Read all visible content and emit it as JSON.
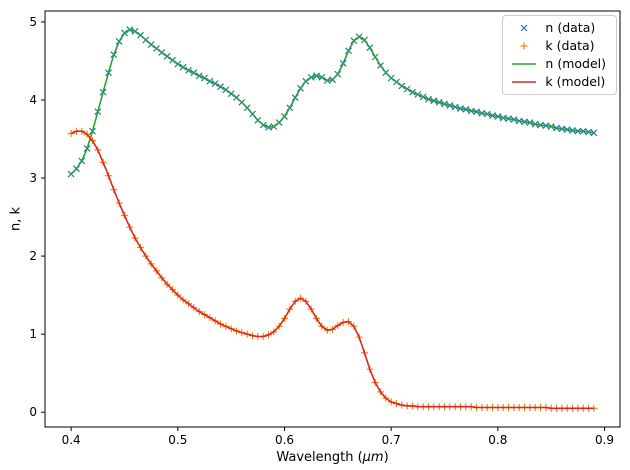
{
  "chart_data": {
    "type": "line",
    "title": "",
    "xlabel_prefix": "Wavelength (",
    "xlabel_math": "μm",
    "xlabel_suffix": ")",
    "ylabel": "n, k",
    "xlim": [
      0.3755,
      0.9145
    ],
    "ylim": [
      -0.19,
      5.14
    ],
    "grid": false,
    "legend_position": "upper right",
    "xtick_values": [
      0.4,
      0.5,
      0.6,
      0.7,
      0.8,
      0.9
    ],
    "xtick_labels": [
      "0.4",
      "0.5",
      "0.6",
      "0.7",
      "0.8",
      "0.9"
    ],
    "ytick_values": [
      0,
      1,
      2,
      3,
      4,
      5
    ],
    "ytick_labels": [
      "0",
      "1",
      "2",
      "3",
      "4",
      "5"
    ],
    "x": [
      0.4,
      0.405,
      0.41,
      0.415,
      0.42,
      0.425,
      0.43,
      0.435,
      0.44,
      0.445,
      0.45,
      0.455,
      0.46,
      0.465,
      0.47,
      0.475,
      0.48,
      0.485,
      0.49,
      0.495,
      0.5,
      0.505,
      0.51,
      0.515,
      0.52,
      0.525,
      0.53,
      0.535,
      0.54,
      0.545,
      0.55,
      0.555,
      0.56,
      0.565,
      0.57,
      0.575,
      0.58,
      0.585,
      0.59,
      0.595,
      0.6,
      0.605,
      0.61,
      0.615,
      0.62,
      0.625,
      0.63,
      0.635,
      0.64,
      0.645,
      0.65,
      0.655,
      0.66,
      0.665,
      0.67,
      0.675,
      0.68,
      0.685,
      0.69,
      0.695,
      0.7,
      0.705,
      0.71,
      0.715,
      0.72,
      0.725,
      0.73,
      0.735,
      0.74,
      0.745,
      0.75,
      0.755,
      0.76,
      0.765,
      0.77,
      0.775,
      0.78,
      0.785,
      0.79,
      0.795,
      0.8,
      0.805,
      0.81,
      0.815,
      0.82,
      0.825,
      0.83,
      0.835,
      0.84,
      0.845,
      0.85,
      0.855,
      0.86,
      0.865,
      0.87,
      0.875,
      0.88,
      0.885,
      0.89
    ],
    "n": [
      3.05,
      3.12,
      3.22,
      3.38,
      3.6,
      3.85,
      4.1,
      4.35,
      4.58,
      4.75,
      4.86,
      4.9,
      4.88,
      4.83,
      4.77,
      4.71,
      4.66,
      4.61,
      4.56,
      4.51,
      4.46,
      4.42,
      4.38,
      4.35,
      4.31,
      4.28,
      4.24,
      4.21,
      4.17,
      4.13,
      4.08,
      4.03,
      3.97,
      3.9,
      3.82,
      3.74,
      3.68,
      3.65,
      3.66,
      3.71,
      3.79,
      3.9,
      4.03,
      4.15,
      4.24,
      4.29,
      4.31,
      4.29,
      4.25,
      4.26,
      4.33,
      4.47,
      4.63,
      4.76,
      4.81,
      4.77,
      4.67,
      4.55,
      4.44,
      4.35,
      4.28,
      4.23,
      4.18,
      4.14,
      4.1,
      4.07,
      4.04,
      4.01,
      3.99,
      3.97,
      3.95,
      3.93,
      3.91,
      3.89,
      3.88,
      3.86,
      3.85,
      3.83,
      3.82,
      3.8,
      3.79,
      3.77,
      3.76,
      3.75,
      3.73,
      3.72,
      3.71,
      3.69,
      3.68,
      3.67,
      3.66,
      3.64,
      3.63,
      3.62,
      3.61,
      3.6,
      3.6,
      3.59,
      3.58
    ],
    "k": [
      3.57,
      3.6,
      3.6,
      3.56,
      3.48,
      3.36,
      3.2,
      3.03,
      2.85,
      2.68,
      2.52,
      2.37,
      2.23,
      2.11,
      2.0,
      1.9,
      1.81,
      1.72,
      1.64,
      1.57,
      1.5,
      1.44,
      1.39,
      1.34,
      1.29,
      1.25,
      1.21,
      1.17,
      1.13,
      1.1,
      1.07,
      1.04,
      1.02,
      1.0,
      0.98,
      0.97,
      0.97,
      0.99,
      1.03,
      1.1,
      1.2,
      1.32,
      1.42,
      1.46,
      1.42,
      1.32,
      1.2,
      1.1,
      1.05,
      1.06,
      1.11,
      1.15,
      1.16,
      1.1,
      0.96,
      0.76,
      0.55,
      0.38,
      0.26,
      0.18,
      0.13,
      0.11,
      0.09,
      0.08,
      0.08,
      0.07,
      0.07,
      0.07,
      0.07,
      0.07,
      0.07,
      0.07,
      0.07,
      0.07,
      0.07,
      0.07,
      0.06,
      0.06,
      0.06,
      0.06,
      0.06,
      0.06,
      0.06,
      0.06,
      0.06,
      0.06,
      0.06,
      0.06,
      0.06,
      0.06,
      0.05,
      0.05,
      0.05,
      0.05,
      0.05,
      0.05,
      0.05,
      0.05,
      0.05
    ],
    "series": [
      {
        "name": "n (data)",
        "type": "scatter",
        "marker": "x",
        "color": "#1f77b4",
        "data": "n"
      },
      {
        "name": "k (data)",
        "type": "scatter",
        "marker": "+",
        "color": "#ff7f0e",
        "data": "k"
      },
      {
        "name": "n (model)",
        "type": "line",
        "color": "#2ca02c",
        "data": "n"
      },
      {
        "name": "k (model)",
        "type": "line",
        "color": "#d62728",
        "data": "k"
      }
    ]
  }
}
